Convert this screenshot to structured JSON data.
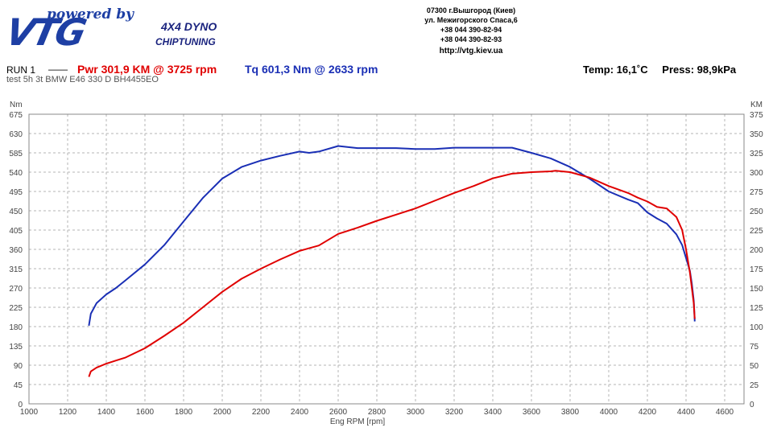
{
  "header": {
    "logo_powered": "powered by",
    "logo_main": "VTG",
    "logo_sub1": "4X4 DYNO",
    "logo_sub2": "CHIPTUNING",
    "address_lines": [
      "07300 г.Вышгород (Киев)",
      "ул. Межигорского Спаса,6",
      "+38 044 390-82-94",
      "+38 044 390-82-93"
    ],
    "url": "http://vtg.kiev.ua"
  },
  "run": {
    "label": "RUN 1",
    "dash": "——",
    "power_summary": "Pwr  301,9 KM @ 3725 rpm",
    "torque_summary": "Tq 601,3 Nm @ 2633 rpm",
    "temp": "Temp: 16,1˚C",
    "press": "Press: 98,9kPa",
    "test_label": "test   5h 3t BMW E46 330 D BH4455EO"
  },
  "colors": {
    "power": "#e00000",
    "torque": "#1a2fb5",
    "grid": "#b5b5b5"
  },
  "chart_data": {
    "type": "line",
    "xlabel": "Eng RPM [rpm]",
    "ylabel": "Nm",
    "y2label": "KM",
    "xlim": [
      1000,
      4700
    ],
    "ylim": [
      0,
      675
    ],
    "y2lim": [
      0,
      375
    ],
    "x_ticks": [
      "1000",
      "1200",
      "1400",
      "1600",
      "1800",
      "2000",
      "2200",
      "2400",
      "2600",
      "2800",
      "3000",
      "3200",
      "3400",
      "3600",
      "3800",
      "4000",
      "4200",
      "4400",
      "4600"
    ],
    "y_ticks": [
      "0",
      "45",
      "90",
      "135",
      "180",
      "225",
      "270",
      "315",
      "360",
      "405",
      "450",
      "495",
      "540",
      "585",
      "630",
      "675"
    ],
    "y2_ticks": [
      "0",
      "25",
      "50",
      "75",
      "100",
      "125",
      "150",
      "175",
      "200",
      "225",
      "250",
      "275",
      "300",
      "325",
      "350",
      "375"
    ],
    "grid": true,
    "series": [
      {
        "name": "Tq",
        "axis": "left",
        "x": [
          1310,
          1320,
          1350,
          1400,
          1450,
          1500,
          1600,
          1700,
          1800,
          1900,
          2000,
          2100,
          2200,
          2300,
          2400,
          2450,
          2500,
          2600,
          2700,
          2800,
          2900,
          3000,
          3100,
          3200,
          3300,
          3400,
          3500,
          3600,
          3700,
          3800,
          3900,
          4000,
          4100,
          4150,
          4200,
          4250,
          4300,
          4350,
          4380,
          4400,
          4420,
          4430,
          4440,
          4445
        ],
        "values": [
          182,
          210,
          235,
          255,
          270,
          288,
          325,
          370,
          425,
          480,
          525,
          552,
          567,
          578,
          588,
          585,
          588,
          601,
          596,
          596,
          596,
          594,
          594,
          597,
          597,
          597,
          597,
          585,
          572,
          552,
          525,
          495,
          476,
          468,
          446,
          432,
          420,
          395,
          370,
          340,
          310,
          280,
          240,
          192
        ]
      },
      {
        "name": "Pwr",
        "axis": "right",
        "x": [
          1310,
          1320,
          1350,
          1400,
          1450,
          1500,
          1600,
          1700,
          1800,
          1900,
          2000,
          2100,
          2200,
          2300,
          2400,
          2500,
          2600,
          2700,
          2800,
          2900,
          3000,
          3100,
          3200,
          3300,
          3400,
          3500,
          3600,
          3700,
          3725,
          3800,
          3900,
          4000,
          4100,
          4150,
          4200,
          4250,
          4300,
          4350,
          4380,
          4400,
          4420,
          4430,
          4440,
          4445
        ],
        "values": [
          35,
          42,
          47,
          52,
          56,
          60,
          72,
          88,
          105,
          125,
          145,
          162,
          175,
          187,
          198,
          205,
          220,
          228,
          237,
          245,
          253,
          263,
          273,
          282,
          292,
          298,
          300,
          301,
          301.9,
          300,
          293,
          282,
          273,
          267,
          262,
          255,
          253,
          242,
          225,
          200,
          170,
          150,
          130,
          110
        ]
      }
    ]
  }
}
